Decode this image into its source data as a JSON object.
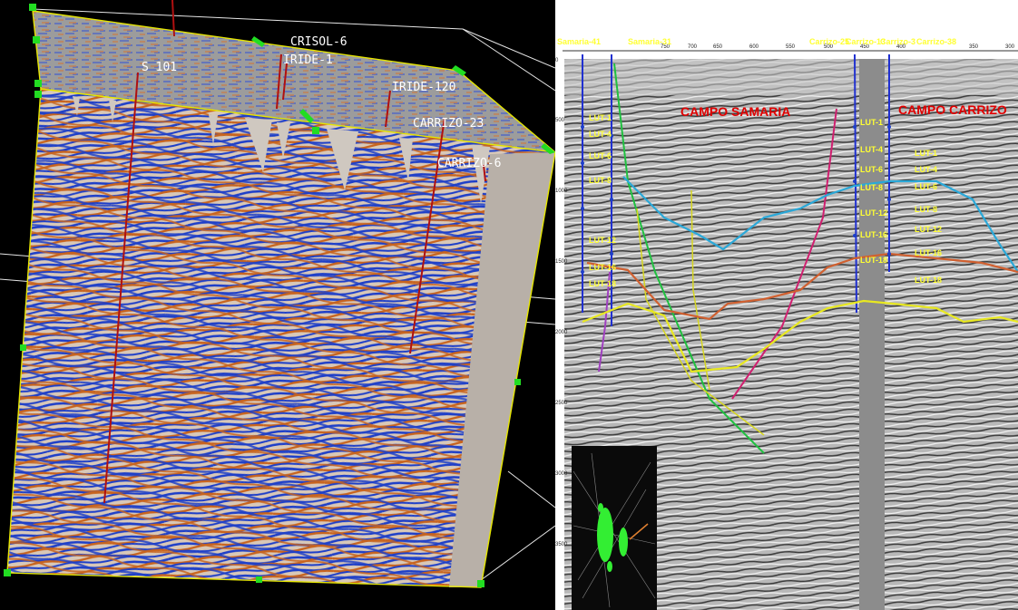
{
  "left_view": {
    "wells": [
      {
        "id": "crisol-6",
        "label": "CRISOL-6"
      },
      {
        "id": "iride-1",
        "label": "IRIDE-1"
      },
      {
        "id": "s-101",
        "label": "S 101"
      },
      {
        "id": "iride-120",
        "label": "IRIDE-120"
      },
      {
        "id": "carrizo-23",
        "label": "CARRIZO-23"
      },
      {
        "id": "carrizo-6",
        "label": "CARRIZO-6"
      }
    ]
  },
  "right_view": {
    "wells": [
      "Samaria-41",
      "Samaria-31",
      "Carrizo-25",
      "Carrizo-13",
      "Carrizo-3",
      "Carrizo-38"
    ],
    "top_ticks": [
      "750",
      "700",
      "650",
      "600",
      "550",
      "500",
      "450",
      "400",
      "350",
      "300"
    ],
    "depth_ticks": [
      "0",
      "500",
      "1000",
      "1500",
      "2000",
      "2500",
      "3000",
      "3500"
    ],
    "fields": {
      "left": "CAMPO SAMARIA",
      "right": "CAMPO CARRIZO"
    },
    "markers_left": [
      "LUT-1",
      "LUT-4",
      "LUT-6",
      "LUT-8",
      "LUT-12",
      "LUT-16",
      "LUT-18"
    ],
    "markers_mid": [
      "LUT-1",
      "LUT-4",
      "LUT-6",
      "LUT-8",
      "LUT-12",
      "LUT-16",
      "LUT-18"
    ],
    "markers_right": [
      "LUT-1",
      "LUT-4",
      "LUT-6",
      "LUT-8",
      "LUT-12",
      "LUT-16",
      "LUT-18"
    ]
  },
  "colors": {
    "seismic_blue": "#1e3fc8",
    "seismic_orange": "#c8641e",
    "seismic_cyan": "#33d6ff",
    "frame_yellow": "#e6e600",
    "handle_green": "#22dd22",
    "well_red": "#b01010",
    "horizon_cyan": "#2aa8d8",
    "horizon_orange": "#d06030",
    "horizon_yellow": "#e8e820",
    "horizon_green": "#20c040",
    "label_red": "#e00000"
  }
}
